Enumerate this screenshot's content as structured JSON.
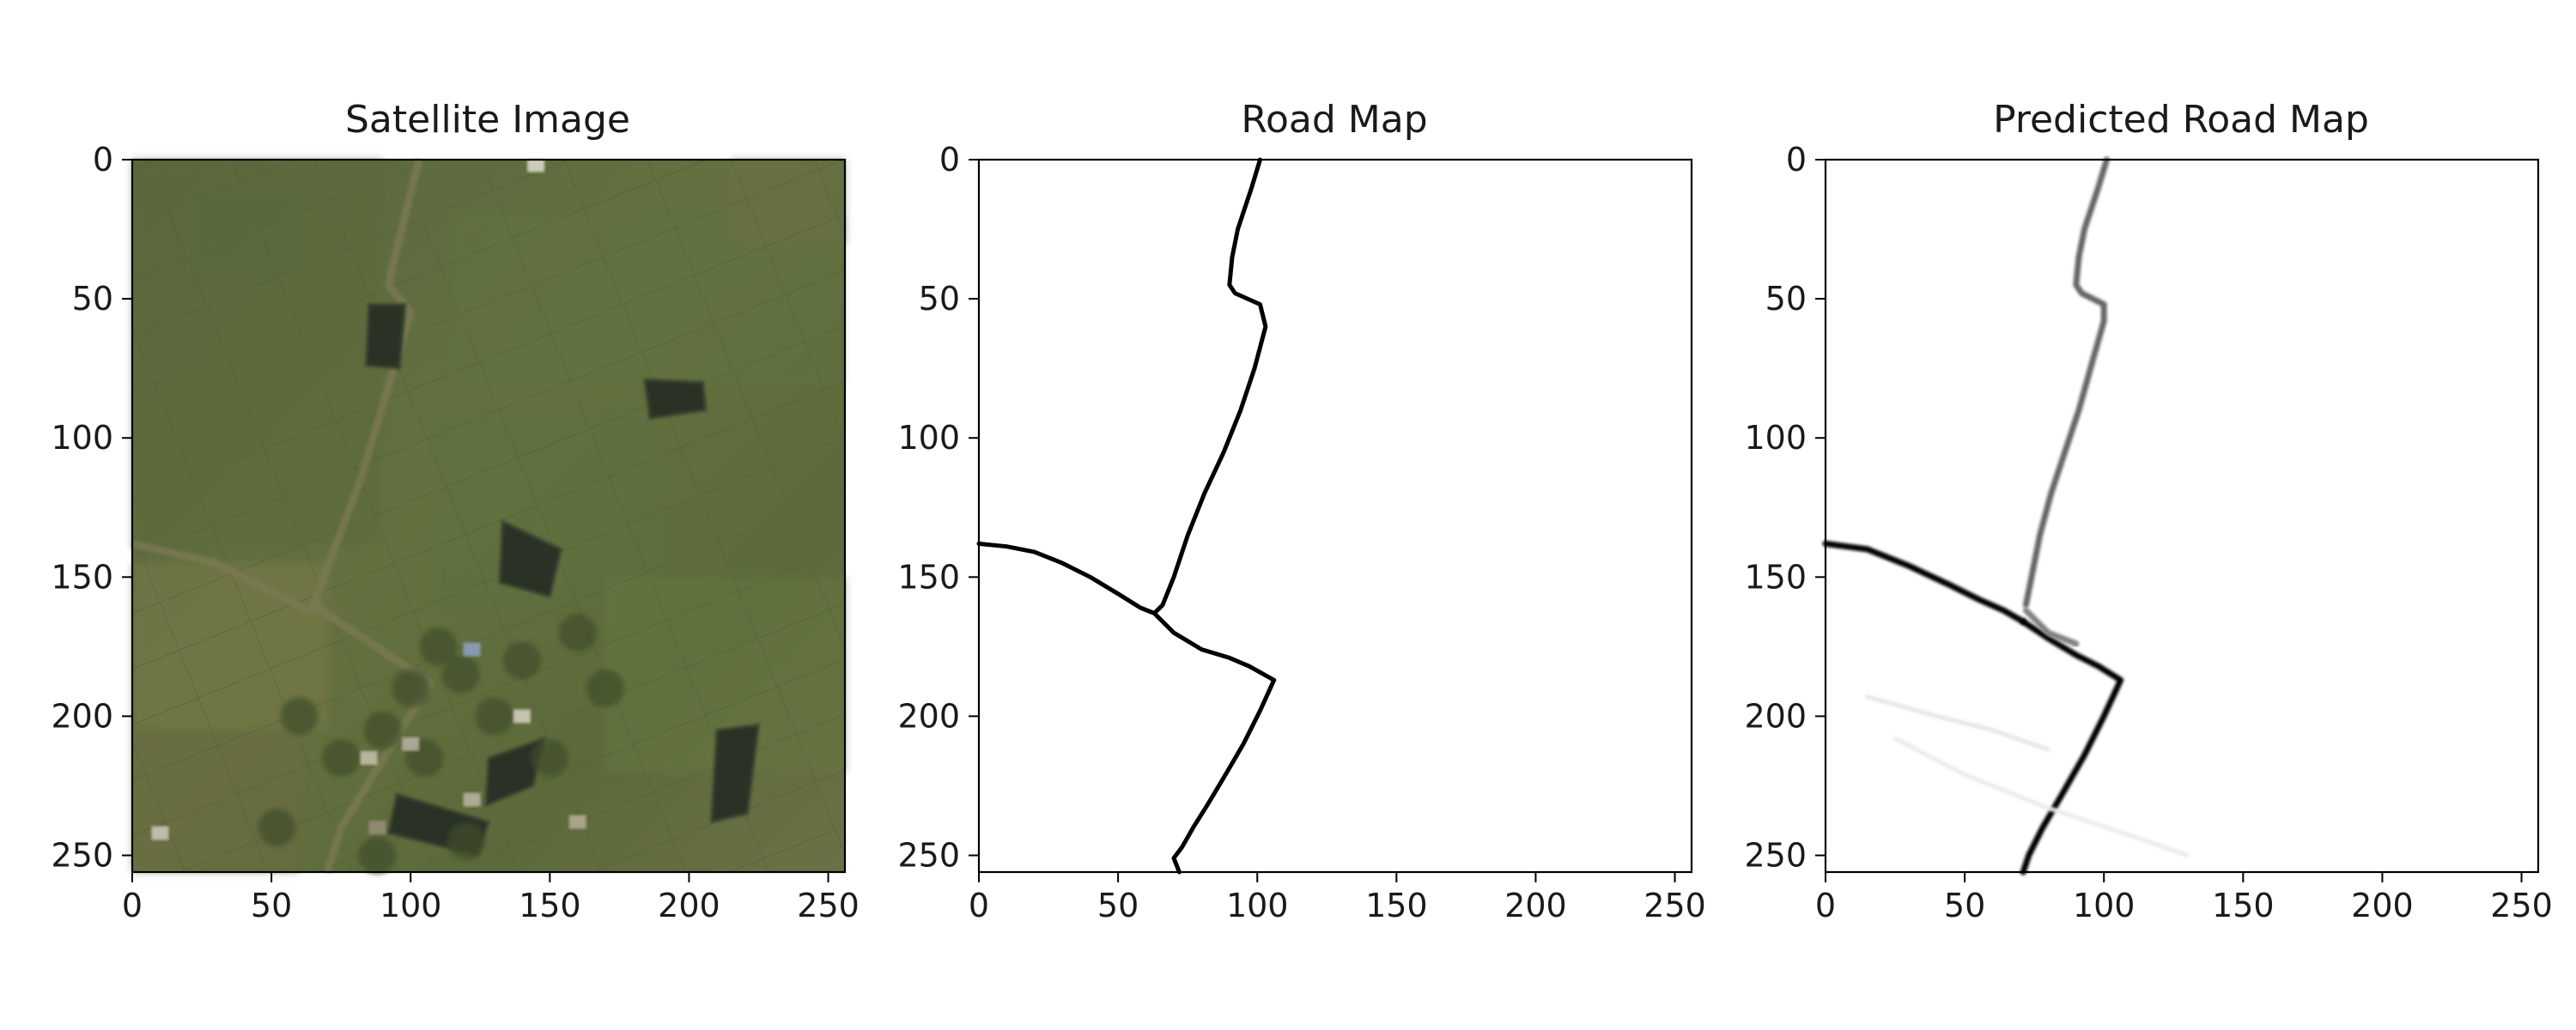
{
  "chart_data": [
    {
      "type": "image",
      "title": "Satellite Image",
      "xlim": [
        0,
        256
      ],
      "ylim": [
        256,
        0
      ],
      "xticks": [
        0,
        50,
        100,
        150,
        200,
        250
      ],
      "yticks": [
        0,
        50,
        100,
        150,
        200,
        250
      ],
      "features": {
        "roads": [
          [
            [
              103,
              0
            ],
            [
              98,
              20
            ],
            [
              92,
              45
            ],
            [
              100,
              55
            ],
            [
              82,
              115
            ],
            [
              65,
              160
            ],
            [
              107,
              188
            ],
            [
              75,
              240
            ],
            [
              70,
              256
            ]
          ],
          [
            [
              0,
              138
            ],
            [
              30,
              145
            ],
            [
              65,
              163
            ]
          ]
        ],
        "ponds": [
          [
            [
              85,
              52
            ],
            [
              98,
              52
            ],
            [
              96,
              75
            ],
            [
              84,
              74
            ]
          ],
          [
            [
              184,
              79
            ],
            [
              205,
              80
            ],
            [
              206,
              90
            ],
            [
              186,
              93
            ]
          ],
          [
            [
              133,
              130
            ],
            [
              154,
              140
            ],
            [
              150,
              157
            ],
            [
              132,
              152
            ]
          ],
          [
            [
              210,
              205
            ],
            [
              225,
              203
            ],
            [
              221,
              235
            ],
            [
              208,
              238
            ]
          ],
          [
            [
              128,
              215
            ],
            [
              148,
              208
            ],
            [
              144,
              225
            ],
            [
              127,
              232
            ]
          ],
          [
            [
              95,
              228
            ],
            [
              128,
              238
            ],
            [
              124,
              250
            ],
            [
              92,
              242
            ]
          ]
        ]
      }
    },
    {
      "type": "line",
      "title": "Road Map",
      "xlim": [
        0,
        256
      ],
      "ylim": [
        256,
        0
      ],
      "xticks": [
        0,
        50,
        100,
        150,
        200,
        250
      ],
      "yticks": [
        0,
        50,
        100,
        150,
        200,
        250
      ],
      "series": [
        {
          "x": [
            101,
            98,
            93,
            91,
            90,
            92,
            101,
            103,
            99,
            94,
            88,
            81,
            75,
            70,
            66,
            63
          ],
          "y": [
            0,
            10,
            25,
            35,
            45,
            48,
            52,
            60,
            75,
            90,
            105,
            120,
            135,
            150,
            160,
            163
          ]
        },
        {
          "x": [
            0,
            10,
            20,
            30,
            40,
            50,
            58,
            63
          ],
          "y": [
            138,
            139,
            141,
            145,
            150,
            156,
            161,
            163
          ]
        },
        {
          "x": [
            63,
            70,
            80,
            90,
            97,
            106,
            101,
            95,
            88,
            82,
            77,
            73,
            70,
            72
          ],
          "y": [
            163,
            170,
            176,
            179,
            182,
            187,
            198,
            210,
            222,
            232,
            240,
            247,
            251,
            256
          ]
        }
      ]
    },
    {
      "type": "line",
      "title": "Predicted Road Map",
      "xlim": [
        0,
        256
      ],
      "ylim": [
        256,
        0
      ],
      "xticks": [
        0,
        50,
        100,
        150,
        200,
        250
      ],
      "yticks": [
        0,
        50,
        100,
        150,
        200,
        250
      ],
      "series": [
        {
          "x": [
            101,
            98,
            93,
            91,
            90,
            92,
            100,
            100,
            96,
            91,
            86,
            81,
            77,
            74,
            72
          ],
          "y": [
            0,
            10,
            25,
            35,
            45,
            48,
            52,
            58,
            72,
            90,
            105,
            120,
            135,
            150,
            160
          ],
          "intensity": 0.6
        },
        {
          "x": [
            0,
            15,
            30,
            45,
            55,
            64,
            71
          ],
          "y": [
            138,
            140,
            146,
            153,
            158,
            162,
            166
          ],
          "intensity": 1.0
        },
        {
          "x": [
            71,
            80,
            90,
            98,
            106,
            100,
            93,
            85,
            78,
            73,
            71
          ],
          "y": [
            166,
            172,
            178,
            182,
            187,
            200,
            214,
            228,
            240,
            250,
            256
          ],
          "intensity": 1.0
        },
        {
          "x": [
            72,
            80,
            90
          ],
          "y": [
            162,
            170,
            174
          ],
          "intensity": 0.5
        },
        {
          "x": [
            15,
            40,
            60,
            80
          ],
          "y": [
            193,
            200,
            205,
            212
          ],
          "intensity": 0.1
        },
        {
          "x": [
            25,
            50,
            80,
            110,
            130
          ],
          "y": [
            208,
            221,
            233,
            243,
            250
          ],
          "intensity": 0.08
        }
      ]
    }
  ]
}
